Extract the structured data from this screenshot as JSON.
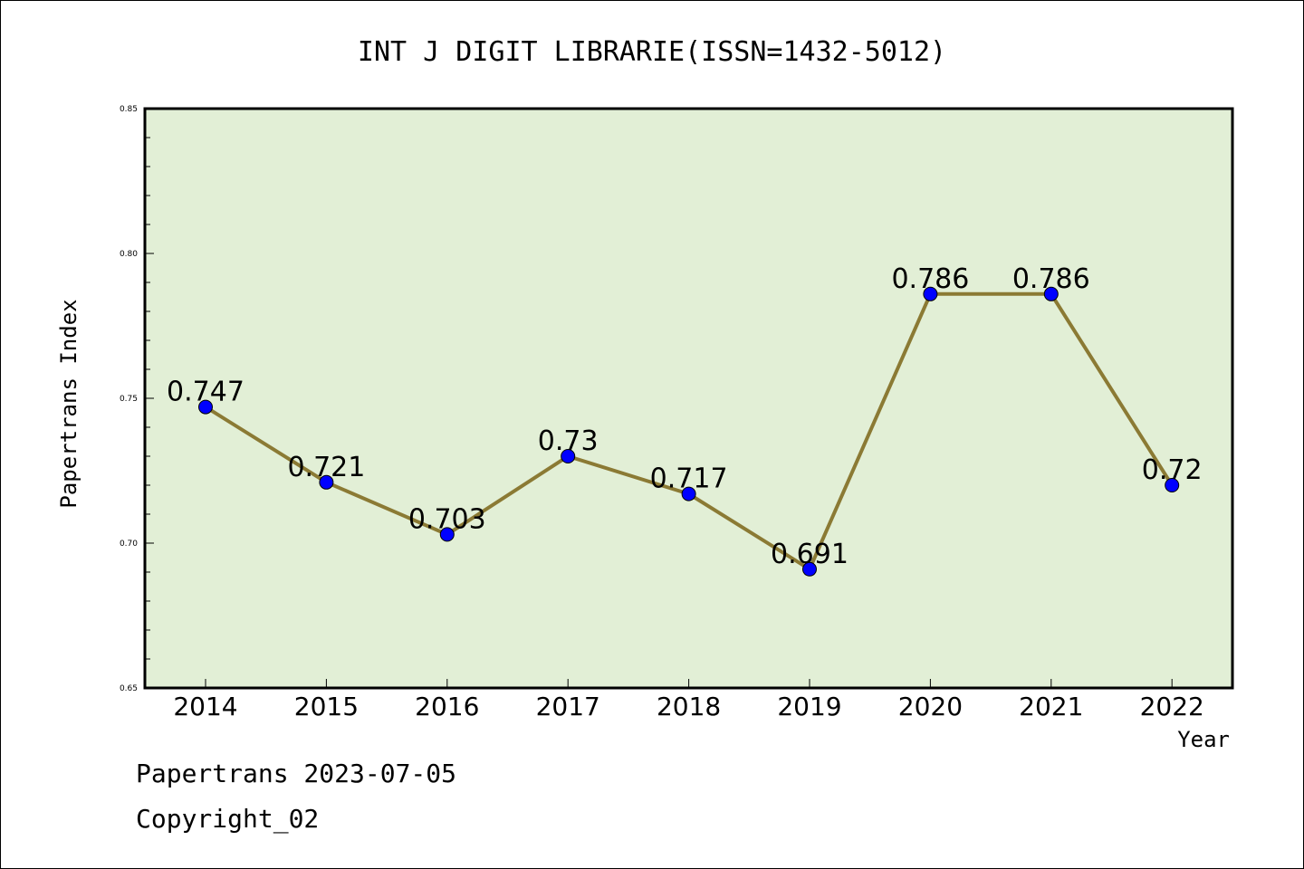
{
  "chart_data": {
    "type": "line",
    "title": "INT J DIGIT LIBRARIE(ISSN=1432-5012)",
    "xlabel": "Year",
    "ylabel": "Papertrans Index",
    "categories": [
      "2014",
      "2015",
      "2016",
      "2017",
      "2018",
      "2019",
      "2020",
      "2021",
      "2022"
    ],
    "values": [
      0.747,
      0.721,
      0.703,
      0.73,
      0.717,
      0.691,
      0.786,
      0.786,
      0.72
    ],
    "value_labels": [
      "0.747",
      "0.721",
      "0.703",
      "0.73",
      "0.717",
      "0.691",
      "0.786",
      "0.786",
      "0.72"
    ],
    "ylim": [
      0.65,
      0.85
    ],
    "yticks": [
      "0.65",
      "0.70",
      "0.75",
      "0.80",
      "0.85"
    ],
    "grid": false,
    "colors": {
      "plot_background": "#e2efd6",
      "line": "#8b7a34",
      "marker": "#0000ff"
    }
  },
  "footer": {
    "line1": "Papertrans 2023-07-05",
    "line2": "Copyright_02"
  }
}
